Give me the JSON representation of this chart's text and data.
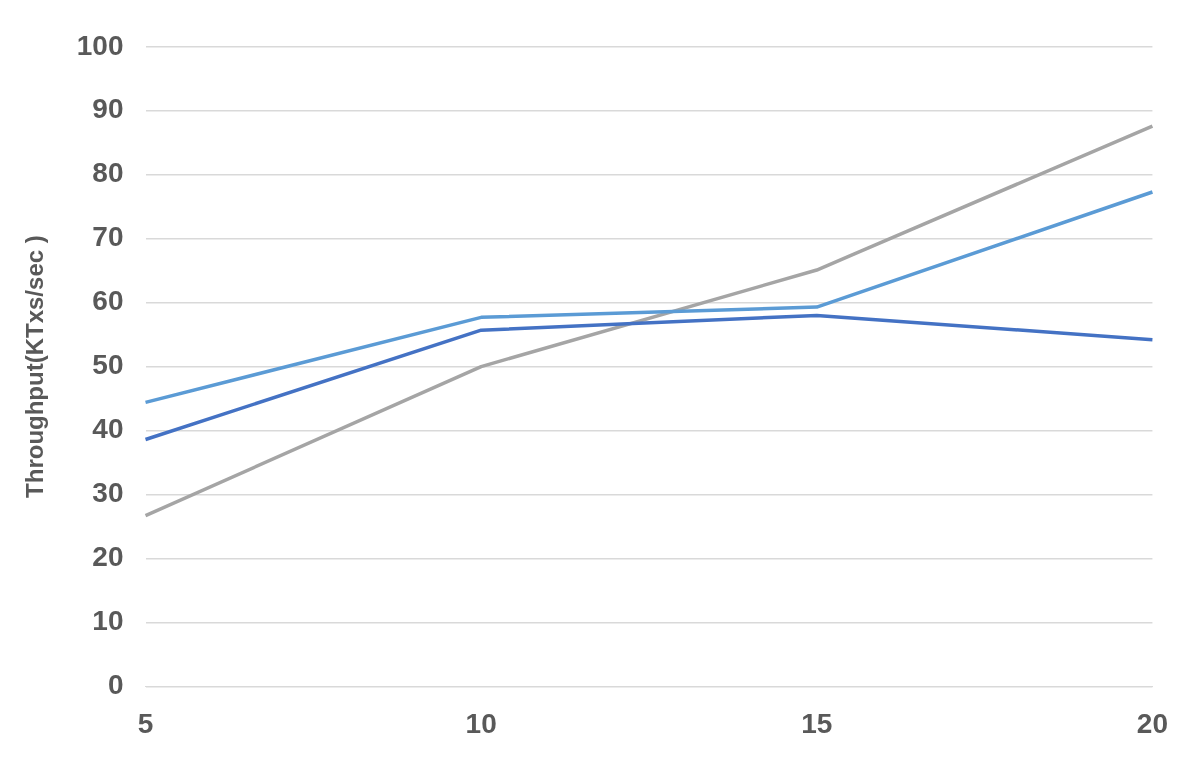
{
  "chart_data": {
    "type": "line",
    "ylabel": "Throughput(KTxs/sec )",
    "categories": [
      "5",
      "10",
      "15",
      "20"
    ],
    "series": [
      {
        "color": "#4472c4",
        "values": [
          38.6,
          55.7,
          58,
          54.2
        ]
      },
      {
        "color": "#5b9bd5",
        "values": [
          44.4,
          57.7,
          59.3,
          77.3
        ]
      },
      {
        "color": "#a5a5a5",
        "values": [
          26.7,
          50,
          65.1,
          87.6
        ]
      }
    ],
    "ylim": [
      0,
      100
    ],
    "yticks": [
      0,
      10,
      20,
      30,
      40,
      50,
      60,
      70,
      80,
      90,
      100
    ],
    "grid": "y",
    "legend": false,
    "marker": "none",
    "line_style": "solid"
  }
}
